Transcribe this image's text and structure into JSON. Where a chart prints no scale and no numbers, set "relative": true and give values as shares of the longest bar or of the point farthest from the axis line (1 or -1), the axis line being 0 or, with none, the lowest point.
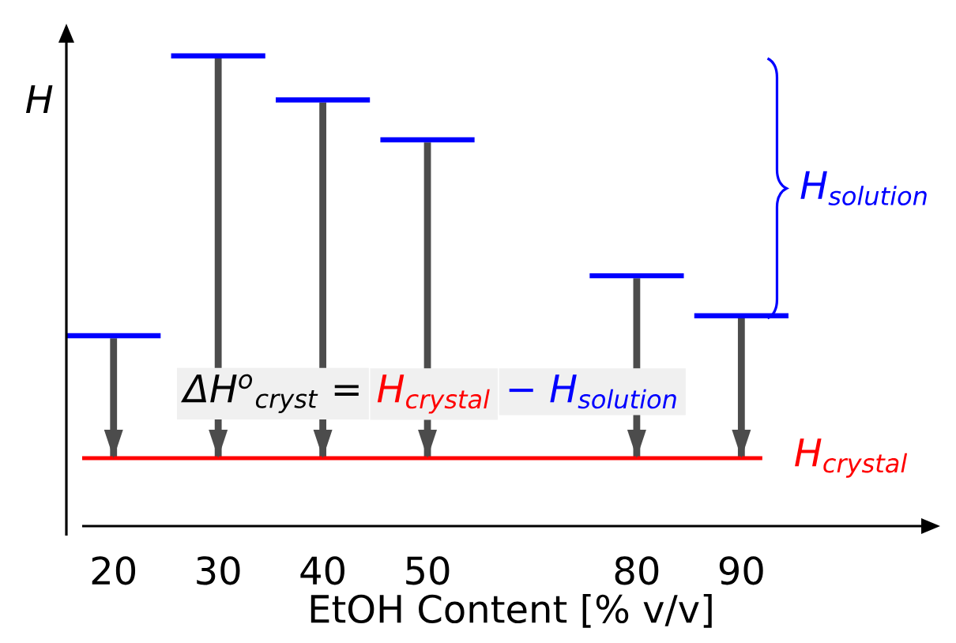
{
  "chart_data": {
    "type": "bar",
    "relative": true,
    "xlabel": "EtOH Content [% v/v]",
    "ylabel": "H",
    "categories": [
      "20",
      "30",
      "40",
      "50",
      null,
      "80",
      "90"
    ],
    "series": [
      {
        "color": "#4c4c4c",
        "values": [
          0.3,
          1,
          0.89,
          0.79,
          null,
          0.45,
          0.35
        ]
      }
    ],
    "ref_lines": [
      {
        "axis": "y",
        "value": 0,
        "label": "H$_{crystal}$",
        "color": "#ff0000"
      }
    ],
    "annotations": [
      "ΔH$^{o}$$_{cryst}$ =",
      "H$_{crystal}$",
      "− H$_{solution}$",
      "H$_{solution}$"
    ]
  }
}
